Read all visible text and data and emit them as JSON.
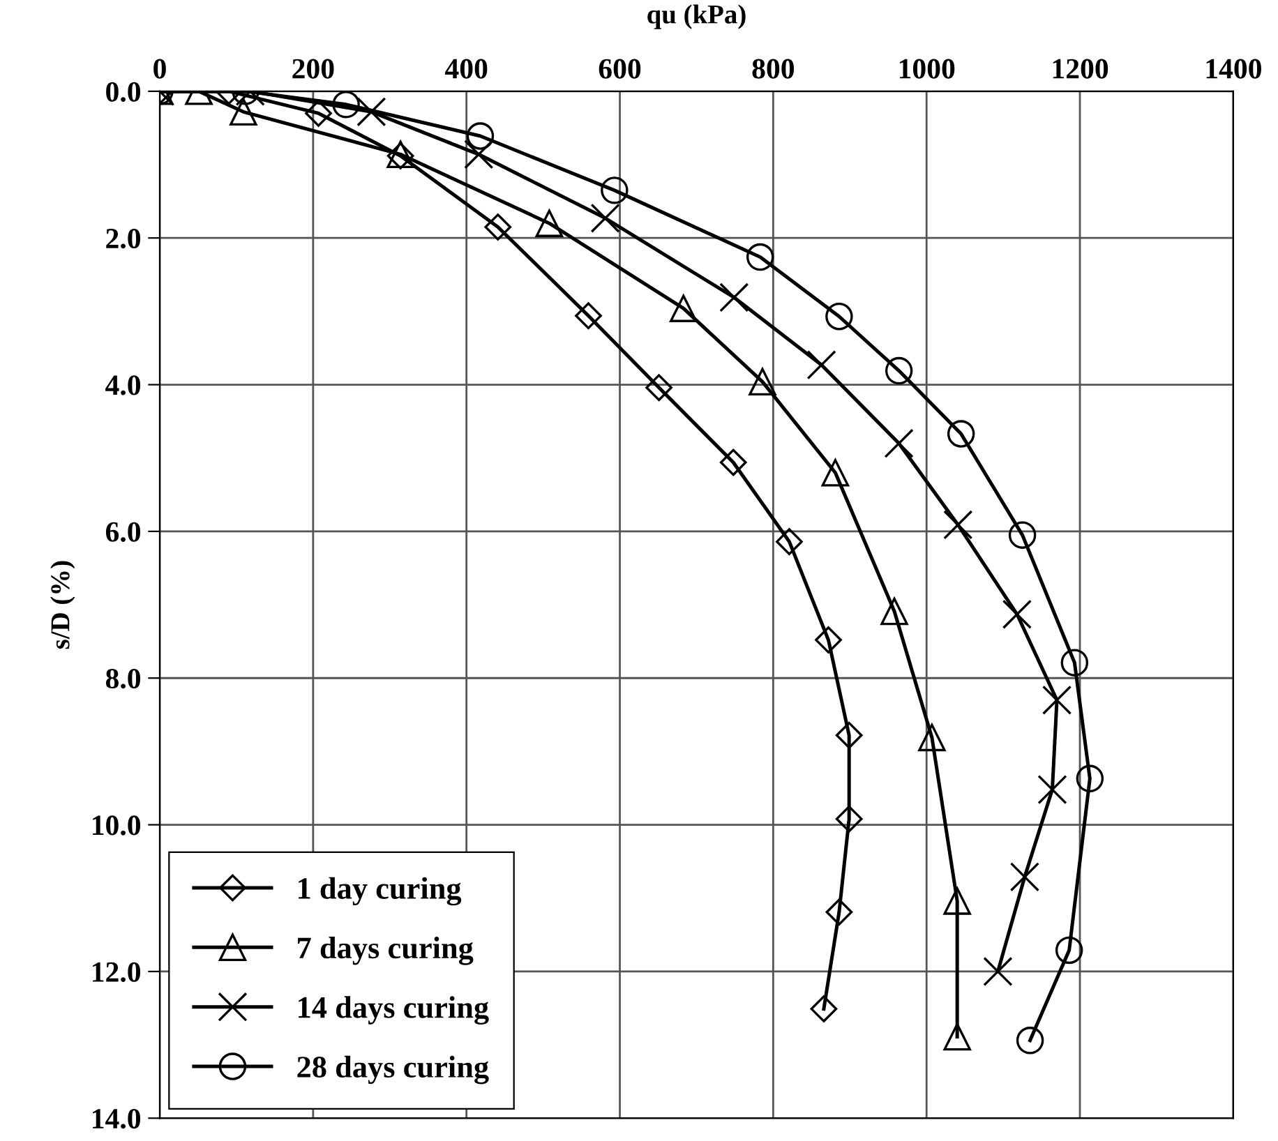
{
  "chart_data": {
    "type": "line",
    "xlabel": "qu (kPa)",
    "ylabel": "s/D (%)",
    "xlim": [
      0,
      1400
    ],
    "xticks": [
      0,
      200,
      400,
      600,
      800,
      1000,
      1200,
      1400
    ],
    "ylim": [
      14,
      0
    ],
    "yticks": [
      {
        "value": 0,
        "label": "0.0"
      },
      {
        "value": 2,
        "label": "2.0"
      },
      {
        "value": 4,
        "label": "4.0"
      },
      {
        "value": 6,
        "label": "6.0"
      },
      {
        "value": 8,
        "label": "8.0"
      },
      {
        "value": 10,
        "label": "10.0"
      },
      {
        "value": 12,
        "label": "12.0"
      },
      {
        "value": 14,
        "label": "14.0"
      }
    ],
    "grid": true,
    "legend": "bottom left",
    "line_style": "solid",
    "series": [
      {
        "name": "1 day curing",
        "color": "#000000",
        "marker": "diamond",
        "x": [
          0,
          90,
          207,
          314,
          441,
          559,
          651,
          748,
          821,
          872,
          899,
          899,
          886,
          866
        ],
        "values": [
          0,
          0,
          0.3,
          0.88,
          1.85,
          3.06,
          4.04,
          5.06,
          6.14,
          7.48,
          8.78,
          9.92,
          11.19,
          12.51
        ]
      },
      {
        "name": "7 days curing",
        "color": "#000000",
        "marker": "triangle",
        "x": [
          0,
          51,
          109,
          314,
          508,
          683,
          786,
          881,
          958,
          1007,
          1040,
          1040
        ],
        "values": [
          0,
          0,
          0.28,
          0.86,
          1.8,
          2.96,
          3.96,
          5.2,
          7.09,
          8.81,
          11.04,
          12.89
        ]
      },
      {
        "name": "14 days curing",
        "color": "#000000",
        "marker": "cross",
        "x": [
          0,
          118,
          276,
          416,
          581,
          749,
          863,
          964,
          1041,
          1118,
          1170,
          1164,
          1128,
          1093
        ],
        "values": [
          0,
          0,
          0.28,
          0.86,
          1.73,
          2.81,
          3.73,
          4.8,
          5.91,
          7.13,
          8.3,
          9.52,
          10.71,
          12.0
        ]
      },
      {
        "name": "28 days curing",
        "color": "#000000",
        "marker": "circle",
        "x": [
          0,
          112,
          243,
          418,
          593,
          783,
          886,
          964,
          1045,
          1125,
          1193,
          1213,
          1186,
          1135
        ],
        "values": [
          0,
          0,
          0.18,
          0.61,
          1.35,
          2.26,
          3.07,
          3.81,
          4.67,
          6.05,
          7.79,
          9.37,
          11.71,
          12.94
        ]
      }
    ]
  }
}
